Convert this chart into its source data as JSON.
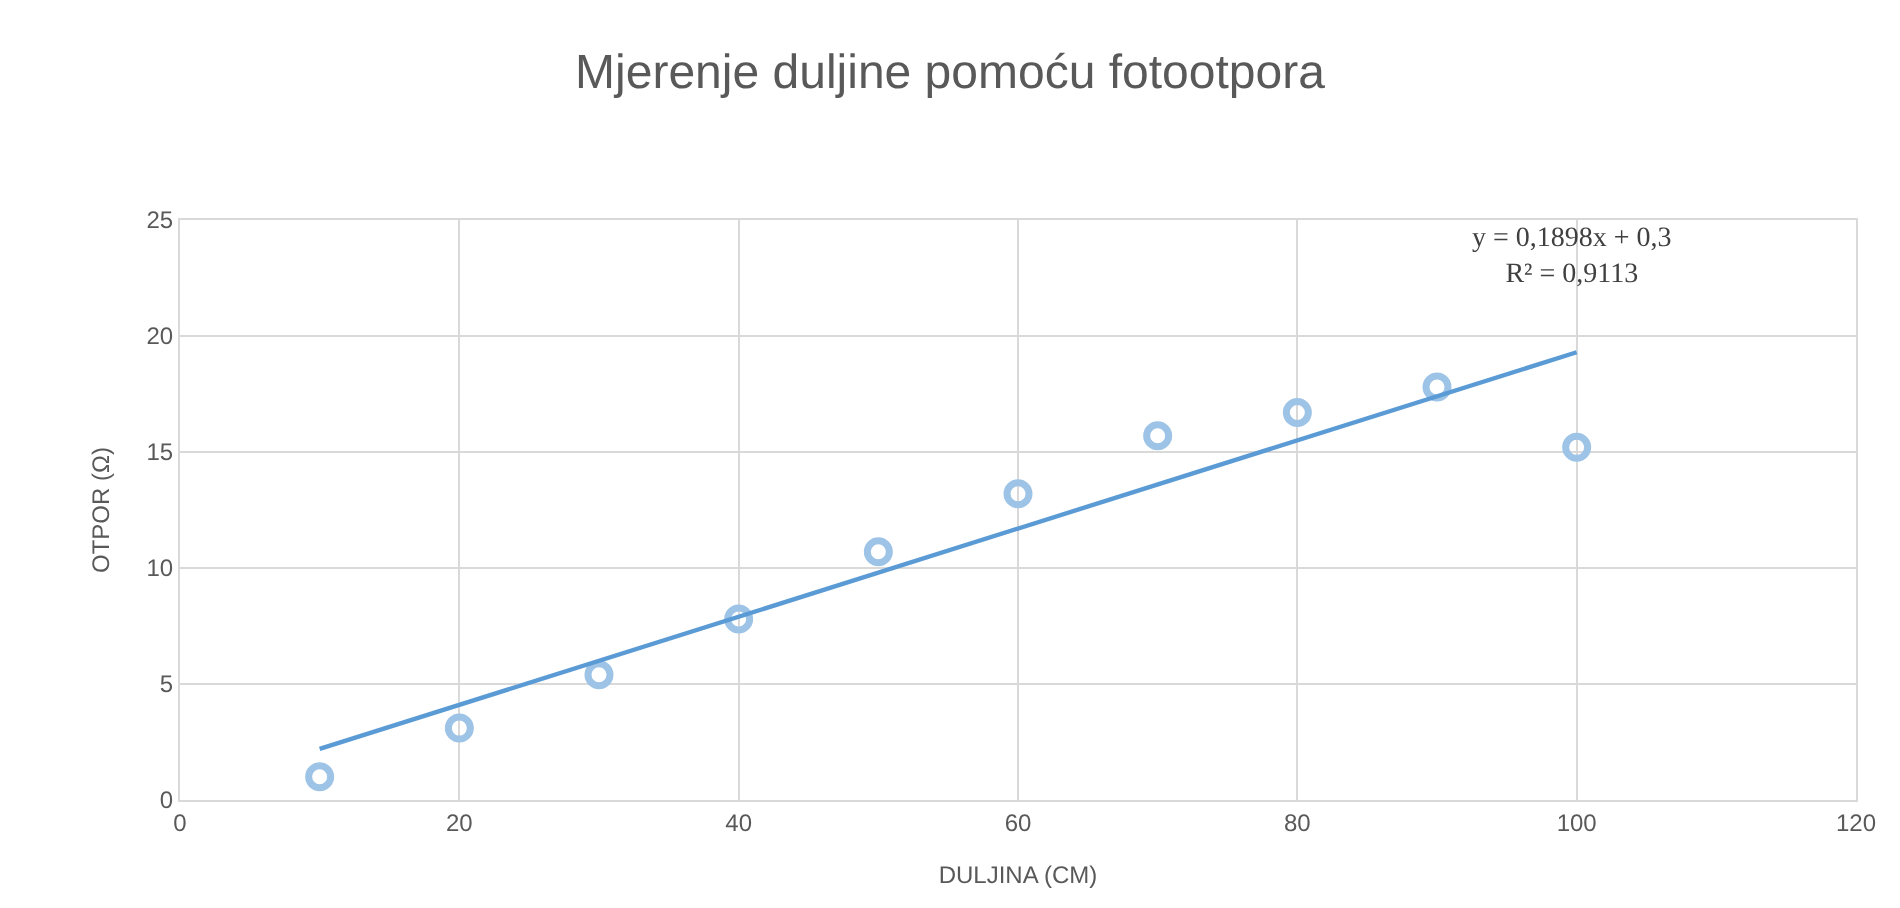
{
  "chart_data": {
    "type": "scatter",
    "title": "Mjerenje duljine pomoću fotootpora",
    "xlabel": "DULJINA (CM)",
    "ylabel": "OTPOR (Ω)",
    "x": [
      10,
      20,
      30,
      40,
      50,
      60,
      70,
      80,
      90,
      100
    ],
    "series": [
      {
        "color": "#9dc3e6",
        "values": [
          1.0,
          3.1,
          5.4,
          7.8,
          10.7,
          13.2,
          15.7,
          16.7,
          17.8,
          15.2
        ],
        "marker": "circle"
      },
      {
        "type": "line",
        "color": "#5b9bd5",
        "x": [
          10,
          100
        ],
        "values": [
          2.2,
          19.3
        ],
        "marker": "none",
        "line_style": "solid"
      }
    ],
    "annotations": [
      "y = 0,1898x + 0,3\nR² = 0,9113"
    ],
    "xlim": [
      0,
      120
    ],
    "xticks": [
      0,
      20,
      40,
      60,
      80,
      100,
      120
    ],
    "ylim": [
      0,
      25
    ],
    "yticks": [
      0,
      5,
      10,
      15,
      20,
      25
    ],
    "grid": true
  }
}
